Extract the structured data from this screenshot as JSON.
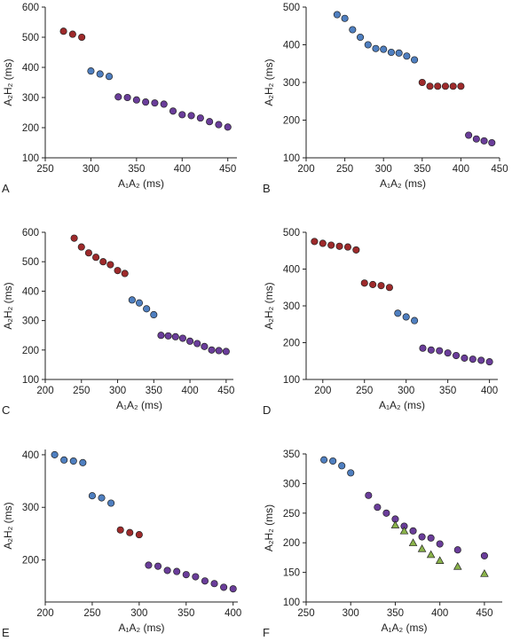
{
  "colors": {
    "red": "#9e2a2b",
    "blue": "#4f7fc0",
    "purple": "#6a3d9a",
    "green": "#8ab34a",
    "marker_stroke": "#222222",
    "axis": "#222222"
  },
  "chart_data": [
    {
      "type": "scatter",
      "label": "A",
      "xlabel": "A₁A₂ (ms)",
      "ylabel": "A₂H₂ (ms)",
      "xlim": [
        250,
        460
      ],
      "ylim": [
        100,
        600
      ],
      "xticks": [
        "250",
        "300",
        "350",
        "400",
        "450"
      ],
      "yticks": [
        "100",
        "200",
        "300",
        "400",
        "500",
        "600"
      ],
      "series": [
        {
          "color": "red",
          "marker": "circle",
          "x": [
            270,
            280,
            290
          ],
          "y": [
            520,
            510,
            500
          ]
        },
        {
          "color": "blue",
          "marker": "circle",
          "x": [
            300,
            310,
            320
          ],
          "y": [
            388,
            378,
            370
          ]
        },
        {
          "color": "purple",
          "marker": "circle",
          "x": [
            330,
            340,
            350,
            360,
            370,
            380,
            390,
            400,
            410,
            420,
            430,
            440,
            450
          ],
          "y": [
            302,
            300,
            292,
            285,
            282,
            278,
            255,
            243,
            240,
            232,
            220,
            210,
            202
          ]
        }
      ]
    },
    {
      "type": "scatter",
      "label": "B",
      "xlabel": "A₁A₂ (ms)",
      "ylabel": "A₂H₂ (ms)",
      "xlim": [
        200,
        450
      ],
      "ylim": [
        100,
        500
      ],
      "xticks": [
        "200",
        "250",
        "300",
        "350",
        "400",
        "450"
      ],
      "yticks": [
        "100",
        "200",
        "300",
        "400",
        "500"
      ],
      "series": [
        {
          "color": "blue",
          "marker": "circle",
          "x": [
            240,
            250,
            260,
            270,
            280,
            290,
            300,
            310,
            320,
            330,
            340
          ],
          "y": [
            480,
            470,
            440,
            420,
            400,
            390,
            388,
            380,
            378,
            370,
            360
          ]
        },
        {
          "color": "red",
          "marker": "circle",
          "x": [
            350,
            360,
            370,
            380,
            390,
            400
          ],
          "y": [
            300,
            290,
            290,
            290,
            290,
            290
          ]
        },
        {
          "color": "purple",
          "marker": "circle",
          "x": [
            410,
            420,
            430,
            440
          ],
          "y": [
            160,
            150,
            145,
            140
          ]
        }
      ]
    },
    {
      "type": "scatter",
      "label": "C",
      "xlabel": "A₁A₂ (ms)",
      "ylabel": "A₂H₂ (ms)",
      "xlim": [
        200,
        460
      ],
      "ylim": [
        100,
        600
      ],
      "xticks": [
        "200",
        "250",
        "300",
        "350",
        "400",
        "450"
      ],
      "yticks": [
        "100",
        "200",
        "300",
        "400",
        "500",
        "600"
      ],
      "series": [
        {
          "color": "red",
          "marker": "circle",
          "x": [
            240,
            250,
            260,
            270,
            280,
            290,
            300,
            310
          ],
          "y": [
            580,
            550,
            530,
            515,
            500,
            490,
            470,
            460
          ]
        },
        {
          "color": "blue",
          "marker": "circle",
          "x": [
            320,
            330,
            340,
            350
          ],
          "y": [
            370,
            360,
            340,
            320
          ]
        },
        {
          "color": "purple",
          "marker": "circle",
          "x": [
            360,
            370,
            380,
            390,
            400,
            410,
            420,
            430,
            440,
            450
          ],
          "y": [
            250,
            248,
            245,
            240,
            230,
            222,
            212,
            200,
            198,
            195
          ]
        }
      ]
    },
    {
      "type": "scatter",
      "label": "D",
      "xlabel": "A₁A₂ (ms)",
      "ylabel": "A₂H₂ (ms)",
      "xlim": [
        180,
        410
      ],
      "ylim": [
        100,
        500
      ],
      "xticks": [
        "200",
        "250",
        "300",
        "350",
        "400"
      ],
      "yticks": [
        "100",
        "200",
        "300",
        "400",
        "500"
      ],
      "series": [
        {
          "color": "red",
          "marker": "circle",
          "x": [
            190,
            200,
            210,
            220,
            230,
            240,
            250,
            260,
            270,
            280
          ],
          "y": [
            475,
            470,
            465,
            462,
            460,
            452,
            362,
            358,
            355,
            350
          ]
        },
        {
          "color": "blue",
          "marker": "circle",
          "x": [
            290,
            300,
            310
          ],
          "y": [
            280,
            270,
            260
          ]
        },
        {
          "color": "purple",
          "marker": "circle",
          "x": [
            320,
            330,
            340,
            350,
            360,
            370,
            380,
            390,
            400
          ],
          "y": [
            185,
            180,
            178,
            172,
            165,
            158,
            155,
            152,
            148
          ]
        }
      ]
    },
    {
      "type": "scatter",
      "label": "E",
      "xlabel": "A₁A₂ (ms)",
      "ylabel": "A₂H₂ (ms)",
      "xlim": [
        200,
        405
      ],
      "ylim": [
        120,
        410
      ],
      "xticks": [
        "200",
        "250",
        "300",
        "350",
        "400"
      ],
      "yticks": [
        "200",
        "300",
        "400"
      ],
      "series": [
        {
          "color": "blue",
          "marker": "circle",
          "x": [
            210,
            220,
            230,
            240,
            250,
            260,
            270
          ],
          "y": [
            400,
            390,
            388,
            385,
            322,
            318,
            308
          ]
        },
        {
          "color": "red",
          "marker": "circle",
          "x": [
            280,
            290,
            300
          ],
          "y": [
            257,
            252,
            248
          ]
        },
        {
          "color": "purple",
          "marker": "circle",
          "x": [
            310,
            320,
            330,
            340,
            350,
            360,
            370,
            380,
            390,
            400
          ],
          "y": [
            190,
            188,
            180,
            178,
            172,
            168,
            160,
            155,
            148,
            145
          ]
        }
      ]
    },
    {
      "type": "scatter",
      "label": "F",
      "xlabel": "A₁A₂ (ms)",
      "ylabel": "A₂H₂ (ms)",
      "xlim": [
        250,
        470
      ],
      "ylim": [
        100,
        350
      ],
      "xticks": [
        "250",
        "300",
        "350",
        "400",
        "450"
      ],
      "yticks": [
        "100",
        "150",
        "200",
        "250",
        "300",
        "350"
      ],
      "series": [
        {
          "color": "blue",
          "marker": "circle",
          "x": [
            270,
            280,
            290,
            300
          ],
          "y": [
            340,
            338,
            330,
            318
          ]
        },
        {
          "color": "purple",
          "marker": "circle",
          "x": [
            320,
            330,
            340,
            350,
            360,
            370,
            380,
            390,
            400,
            420,
            450
          ],
          "y": [
            280,
            260,
            250,
            240,
            228,
            220,
            210,
            208,
            198,
            188,
            178
          ]
        },
        {
          "color": "green",
          "marker": "triangle",
          "x": [
            350,
            360,
            370,
            380,
            390,
            400,
            420,
            450
          ],
          "y": [
            230,
            220,
            200,
            190,
            180,
            170,
            160,
            148
          ]
        }
      ]
    }
  ]
}
